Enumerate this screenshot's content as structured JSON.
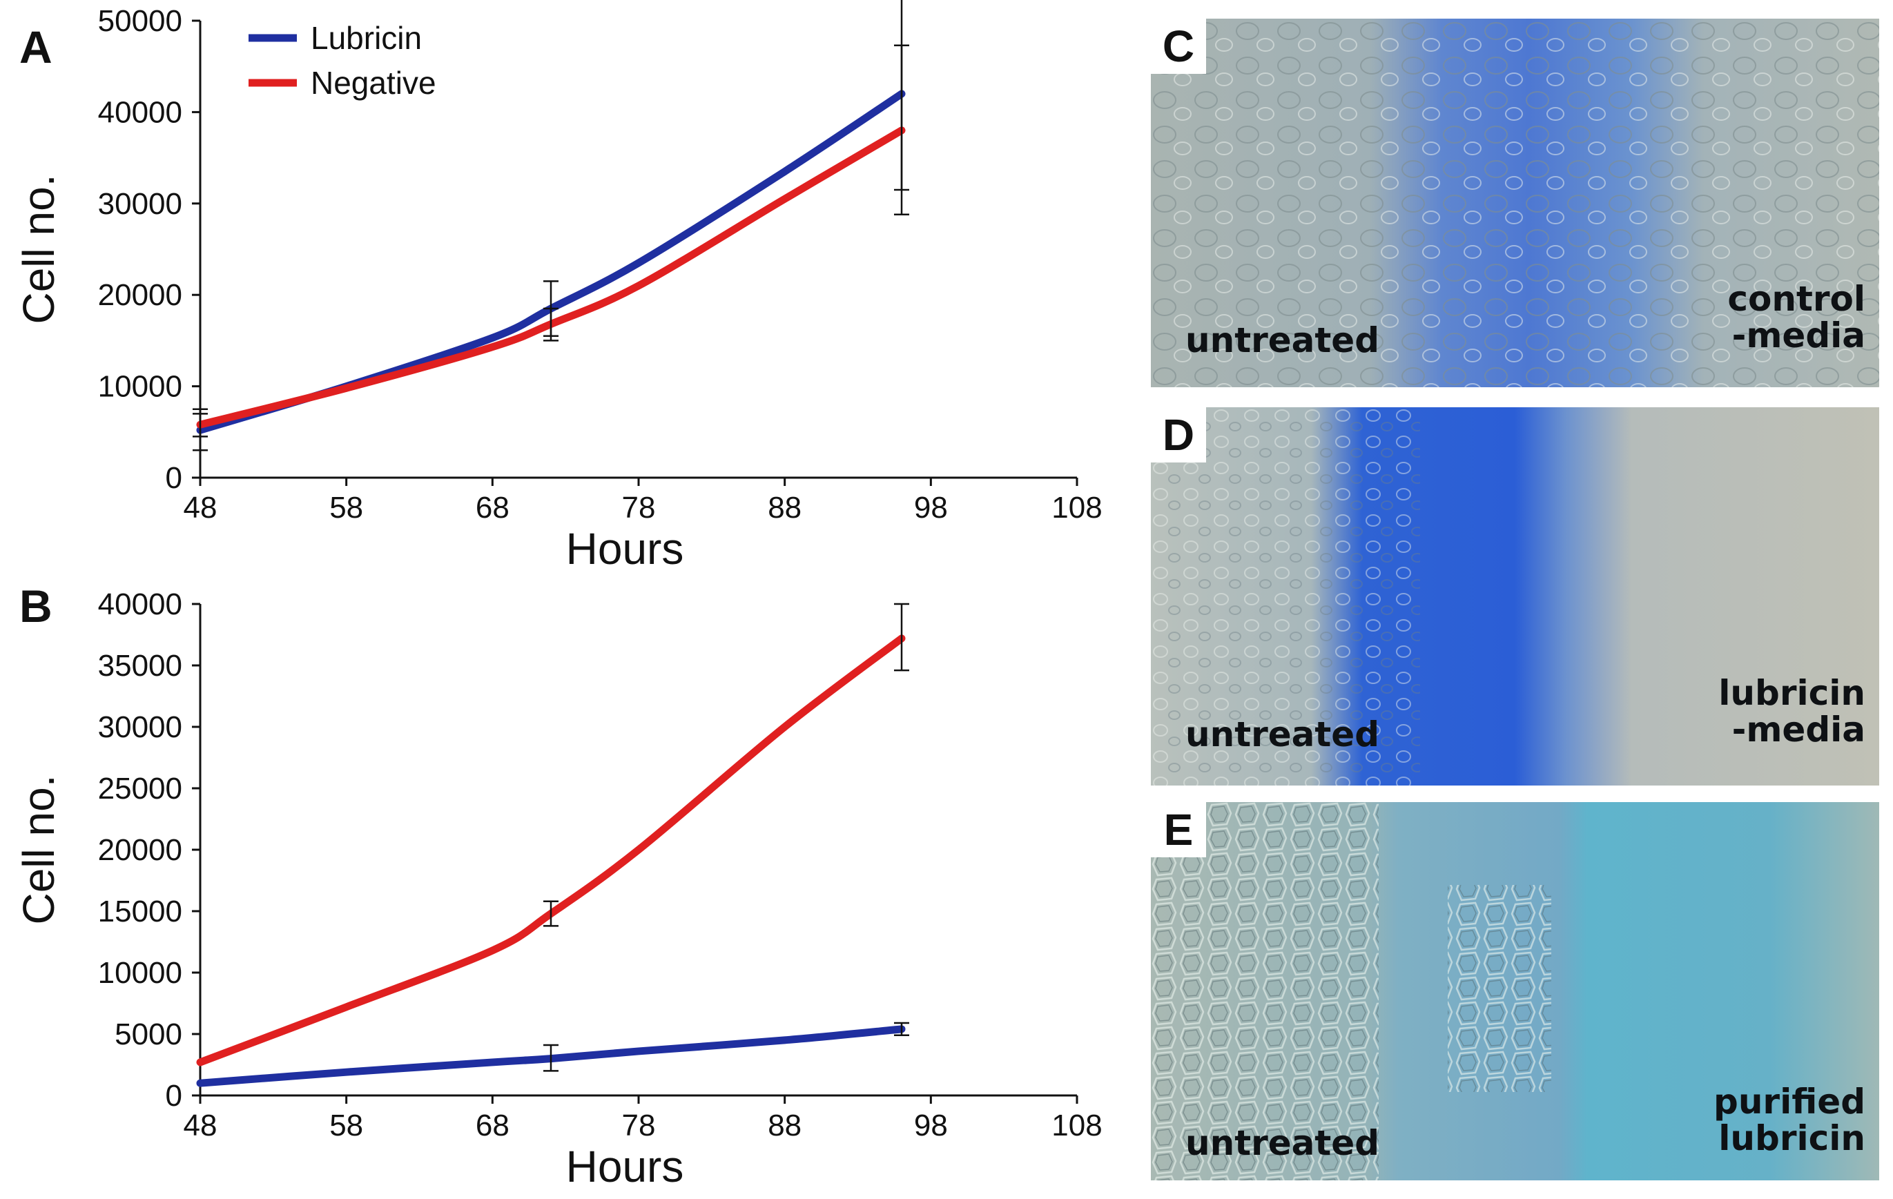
{
  "chart_data": [
    {
      "panel": "A",
      "type": "line",
      "xlabel": "Hours",
      "ylabel": "Cell no.",
      "xlim": [
        48,
        108
      ],
      "ylim": [
        0,
        50000
      ],
      "xticks": [
        "48",
        "58",
        "68",
        "78",
        "88",
        "98",
        "108"
      ],
      "yticks": [
        "0",
        "10000",
        "20000",
        "30000",
        "40000",
        "50000"
      ],
      "legend": [
        "Lubricin",
        "Negative"
      ],
      "series": [
        {
          "name": "Lubricin",
          "color": "#1f2fa0",
          "x": [
            48,
            58,
            68,
            72,
            78,
            88,
            96
          ],
          "y": [
            5200,
            10000,
            15300,
            18500,
            23500,
            33500,
            42000
          ],
          "errors": [
            {
              "x": 48,
              "lo": 3000,
              "hi": 7500
            },
            {
              "x": 72,
              "lo": 15500,
              "hi": 21500
            },
            {
              "x": 96,
              "lo": 31500,
              "hi": 52500
            }
          ]
        },
        {
          "name": "Negative",
          "color": "#e02020",
          "x": [
            48,
            58,
            68,
            72,
            78,
            88,
            96
          ],
          "y": [
            5800,
            9800,
            14300,
            16800,
            21000,
            30500,
            38000
          ],
          "errors": [
            {
              "x": 48,
              "lo": 4500,
              "hi": 7000
            },
            {
              "x": 72,
              "lo": 15000,
              "hi": 18500
            },
            {
              "x": 96,
              "lo": 28800,
              "hi": 47300
            }
          ]
        }
      ]
    },
    {
      "panel": "B",
      "type": "line",
      "xlabel": "Hours",
      "ylabel": "Cell no.",
      "xlim": [
        48,
        108
      ],
      "ylim": [
        0,
        40000
      ],
      "xticks": [
        "48",
        "58",
        "68",
        "78",
        "88",
        "98",
        "108"
      ],
      "yticks": [
        "0",
        "5000",
        "10000",
        "15000",
        "20000",
        "25000",
        "30000",
        "35000",
        "40000"
      ],
      "series": [
        {
          "name": "Negative",
          "color": "#e02020",
          "x": [
            48,
            58,
            68,
            72,
            78,
            88,
            96
          ],
          "y": [
            2700,
            7200,
            11800,
            14800,
            20000,
            30000,
            37200
          ],
          "errors": [
            {
              "x": 72,
              "lo": 13800,
              "hi": 15800
            },
            {
              "x": 96,
              "lo": 34600,
              "hi": 40000
            }
          ]
        },
        {
          "name": "Lubricin",
          "color": "#1f2fa0",
          "x": [
            48,
            58,
            68,
            72,
            78,
            88,
            96
          ],
          "y": [
            1000,
            1900,
            2700,
            3000,
            3600,
            4500,
            5400
          ],
          "errors": [
            {
              "x": 72,
              "lo": 2000,
              "hi": 4100
            },
            {
              "x": 96,
              "lo": 4900,
              "hi": 5900
            }
          ]
        }
      ]
    }
  ],
  "micrographs": [
    {
      "panel": "C",
      "left_label": "untreated",
      "right_label": "control\n-media"
    },
    {
      "panel": "D",
      "left_label": "untreated",
      "right_label": "lubricin\n-media"
    },
    {
      "panel": "E",
      "left_label": "untreated",
      "right_label": "purified\nlubricin"
    }
  ]
}
